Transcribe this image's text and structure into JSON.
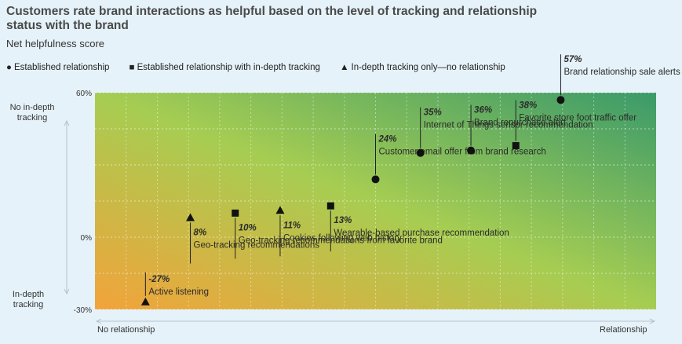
{
  "title": "Customers rate brand interactions as helpful based on the level of tracking and relationship status with the brand",
  "subtitle": "Net helpfulness score",
  "legend": [
    {
      "symbol": "circle",
      "label": "Established relationship"
    },
    {
      "symbol": "square",
      "label": "Established relationship with in-depth tracking"
    },
    {
      "symbol": "triangle",
      "label": "In-depth tracking only—no relationship"
    }
  ],
  "y_axis_top_label": "No in-depth tracking",
  "y_axis_bottom_label": "In-depth tracking",
  "x_axis_left_label": "No relationship",
  "x_axis_right_label": "Relationship",
  "colors": {
    "gradient_left": "#f2a33a",
    "gradient_mid": "#a6cd52",
    "gradient_right": "#3a9a6a",
    "marker": "#111111",
    "label_text": "#2b2b2b"
  },
  "chart_data": {
    "type": "scatter",
    "ylim": [
      -30,
      60
    ],
    "yticks": [
      "60%",
      "0%",
      "-30%"
    ],
    "ytick_values": [
      60,
      0,
      -30
    ],
    "xlim": [
      0,
      1
    ],
    "grid": true,
    "points": [
      {
        "name": "Active listening",
        "value_label": "-27%",
        "y": -27,
        "x": 0.09,
        "symbol": "triangle"
      },
      {
        "name": "Geo-tracking recommendations",
        "value_label": "8%",
        "y": 8,
        "x": 0.17,
        "symbol": "triangle"
      },
      {
        "name": "Geo-tracking recommendations from favorite brand",
        "value_label": "10%",
        "y": 10,
        "x": 0.25,
        "symbol": "square"
      },
      {
        "name": "Cookies following web history",
        "value_label": "11%",
        "y": 11,
        "x": 0.33,
        "symbol": "triangle"
      },
      {
        "name": "Wearable-based purchase recommendation",
        "value_label": "13%",
        "y": 13,
        "x": 0.42,
        "symbol": "square"
      },
      {
        "name": "Customer email offer from brand research",
        "value_label": "24%",
        "y": 24,
        "x": 0.5,
        "symbol": "circle"
      },
      {
        "name": "Internet of Things sensor recommendation",
        "value_label": "35%",
        "y": 35,
        "x": 0.58,
        "symbol": "circle"
      },
      {
        "name": "Brand repurchase alert",
        "value_label": "36%",
        "y": 36,
        "x": 0.67,
        "symbol": "circle"
      },
      {
        "name": "Favorite store foot traffic offer",
        "value_label": "38%",
        "y": 38,
        "x": 0.75,
        "symbol": "square"
      },
      {
        "name": "Brand relationship sale alerts",
        "value_label": "57%",
        "y": 57,
        "x": 0.83,
        "symbol": "circle"
      }
    ]
  }
}
